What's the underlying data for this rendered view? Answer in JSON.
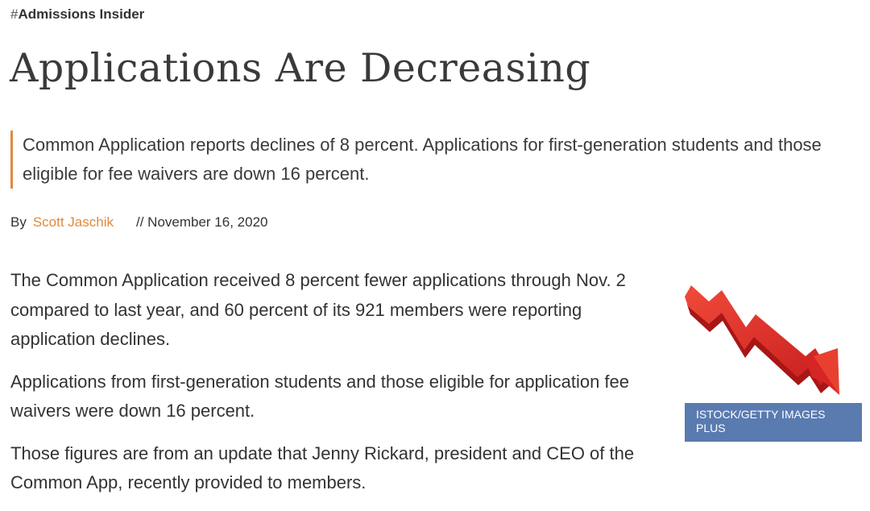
{
  "tag": {
    "hash": "#",
    "label": "Admissions Insider"
  },
  "title": "Applications Are Decreasing",
  "dek": {
    "text": "Common Application reports declines of 8 percent. Applications for first-generation students and those eligible for fee waivers are down 16 percent.",
    "accent_color": "#e2893c"
  },
  "byline": {
    "prefix": "By",
    "author": "Scott Jaschik",
    "date": "// November 16, 2020"
  },
  "body": {
    "paragraphs": [
      "The Common Application received 8 percent fewer applications through Nov. 2 compared to last year, and 60 percent of its 921 members were reporting application declines.",
      "Applications from first-generation students and those eligible for application fee waivers were down 16 percent.",
      "Those figures are from an update that Jenny Rickard, president and CEO of the Common App, recently provided to members."
    ]
  },
  "figure": {
    "icon": "downward-red-arrow-icon",
    "caption": "ISTOCK/GETTY IMAGES PLUS",
    "caption_bg": "#5a7bb0"
  },
  "colors": {
    "accent": "#e2893c",
    "text": "#333333",
    "arrow_red": "#e02a2a"
  }
}
